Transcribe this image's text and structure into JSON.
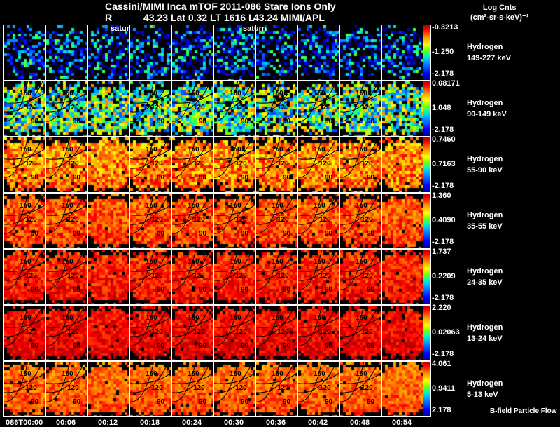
{
  "header": {
    "title": "Cassini/MIMI Inca mTOF  2011-086   Stare   Ions Only",
    "subtitle_r": "R",
    "subtitle_mid": "43.23 Lat 0.32 LT 1616 L",
    "subtitle_right": "43.24  MIMI/APL",
    "units_line1": "Log Cnts",
    "units_line2": "(cm²-sr-s-keV)⁻¹"
  },
  "saturn_labels": [
    "satur",
    "saturn"
  ],
  "contour_labels": [
    "150",
    "120",
    "90"
  ],
  "rows": [
    {
      "species": "Hydrogen",
      "energy": "149-227 keV",
      "max": "-0.3213",
      "mid": "-1.250",
      "min": "-2.178"
    },
    {
      "species": "Hydrogen",
      "energy": "90-149 keV",
      "max": "0.08171",
      "mid": "1.048",
      "min": "-2.178"
    },
    {
      "species": "Hydrogen",
      "energy": "55-90 keV",
      "max": "0.7460",
      "mid": "0.7163",
      "min": "-2.178"
    },
    {
      "species": "Hydrogen",
      "energy": "35-55 keV",
      "max": "1.360",
      "mid": "0.4090",
      "min": "-2.178"
    },
    {
      "species": "Hydrogen",
      "energy": "24-35 keV",
      "max": "1.737",
      "mid": "0.2209",
      "min": "-2.178"
    },
    {
      "species": "Hydrogen",
      "energy": "13-24 keV",
      "max": "2.220",
      "mid": "0.02063",
      "min": "-2.178"
    },
    {
      "species": "Hydrogen",
      "energy": "5-13 keV",
      "max": "4.061",
      "mid": "0.9411",
      "min": "2.178"
    }
  ],
  "times": [
    "086T00:00",
    "00:06",
    "00:12",
    "00:18",
    "00:24",
    "00:30",
    "00:36",
    "00:42",
    "00:48",
    "00:54"
  ],
  "legend": "B-field Particle Flow"
}
